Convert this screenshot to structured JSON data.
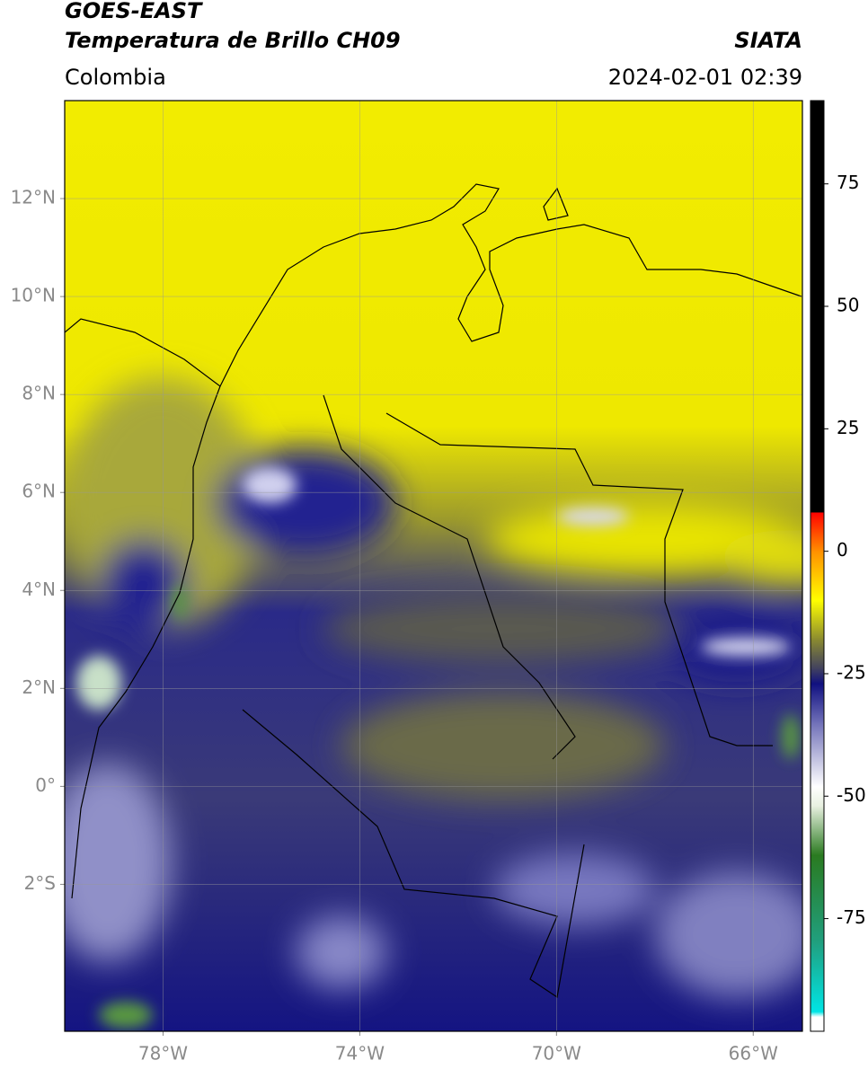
{
  "header": {
    "title": "GOES-EAST",
    "subtitle": "Temperatura de Brillo CH09",
    "source": "SIATA",
    "region": "Colombia",
    "datetime": "2024-02-01 02:39"
  },
  "map": {
    "xlim": [
      -80,
      -65
    ],
    "ylim": [
      -5,
      14
    ],
    "xticks": [
      {
        "value": -78,
        "label": "78°W"
      },
      {
        "value": -74,
        "label": "74°W"
      },
      {
        "value": -70,
        "label": "70°W"
      },
      {
        "value": -66,
        "label": "66°W"
      }
    ],
    "yticks": [
      {
        "value": 12,
        "label": "12°N"
      },
      {
        "value": 10,
        "label": "10°N"
      },
      {
        "value": 8,
        "label": "8°N"
      },
      {
        "value": 6,
        "label": "6°N"
      },
      {
        "value": 4,
        "label": "4°N"
      },
      {
        "value": 2,
        "label": "2°N"
      },
      {
        "value": 0,
        "label": "0°"
      },
      {
        "value": -2,
        "label": "2°S"
      }
    ],
    "grid": true
  },
  "colorbar": {
    "lim": [
      -98,
      92
    ],
    "ticks": [
      75,
      50,
      25,
      0,
      -25,
      -50,
      -75
    ],
    "stops": [
      {
        "value": -98,
        "color": "#ffffff"
      },
      {
        "value": -95,
        "color": "#ffffff"
      },
      {
        "value": -94,
        "color": "#00e5e5"
      },
      {
        "value": -80,
        "color": "#20a080"
      },
      {
        "value": -62,
        "color": "#2a7a20"
      },
      {
        "value": -52,
        "color": "#e8f0e0"
      },
      {
        "value": -48,
        "color": "#ffffff"
      },
      {
        "value": -35,
        "color": "#7070b8"
      },
      {
        "value": -27,
        "color": "#101080"
      },
      {
        "value": -24,
        "color": "#404060"
      },
      {
        "value": -18,
        "color": "#8a8a30"
      },
      {
        "value": -10,
        "color": "#ffff00"
      },
      {
        "value": 0,
        "color": "#ff9000"
      },
      {
        "value": 8,
        "color": "#ff0000"
      },
      {
        "value": 8.01,
        "color": "#000000"
      },
      {
        "value": 92,
        "color": "#000000"
      }
    ]
  }
}
